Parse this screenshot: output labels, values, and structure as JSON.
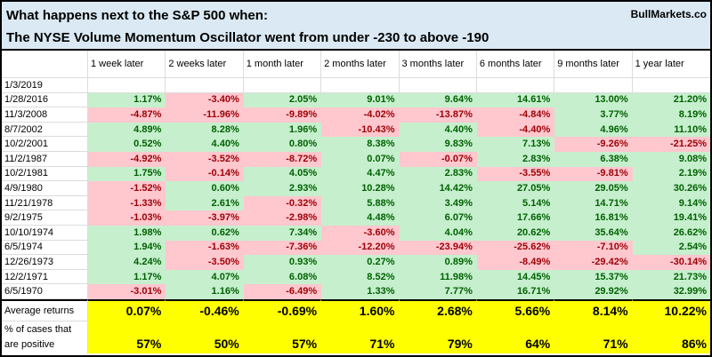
{
  "header": {
    "title_line1": "What happens next to the S&P 500 when:",
    "title_line2": "The NYSE Volume Momentum Oscillator went from under -230 to above -190",
    "brand": "BullMarkets.co"
  },
  "colors": {
    "title_bg": "#dae9f3",
    "positive_bg": "#c6efce",
    "positive_text": "#006100",
    "negative_bg": "#ffc7ce",
    "negative_text": "#9c0006",
    "summary_bg": "#ffff00"
  },
  "chart_data": {
    "type": "table",
    "title": "What happens next to the S&P 500 when: The NYSE Volume Momentum Oscillator went from under -230 to above -190",
    "columns": [
      "1 week later",
      "2 weeks later",
      "1 month later",
      "2 months later",
      "3 months later",
      "6 months later",
      "9 months later",
      "1 year later"
    ],
    "rows": [
      {
        "date": "1/3/2019",
        "values": [
          "",
          "",
          "",
          "",
          "",
          "",
          "",
          ""
        ]
      },
      {
        "date": "1/28/2016",
        "values": [
          "1.17%",
          "-3.40%",
          "2.05%",
          "9.01%",
          "9.64%",
          "14.61%",
          "13.00%",
          "21.20%"
        ]
      },
      {
        "date": "11/3/2008",
        "values": [
          "-4.87%",
          "-11.96%",
          "-9.89%",
          "-4.02%",
          "-13.87%",
          "-4.84%",
          "3.77%",
          "8.19%"
        ]
      },
      {
        "date": "8/7/2002",
        "values": [
          "4.89%",
          "8.28%",
          "1.96%",
          "-10.43%",
          "4.40%",
          "-4.40%",
          "4.96%",
          "11.10%"
        ]
      },
      {
        "date": "10/2/2001",
        "values": [
          "0.52%",
          "4.40%",
          "0.80%",
          "8.38%",
          "9.83%",
          "7.13%",
          "-9.26%",
          "-21.25%"
        ]
      },
      {
        "date": "11/2/1987",
        "values": [
          "-4.92%",
          "-3.52%",
          "-8.72%",
          "0.07%",
          "-0.07%",
          "2.83%",
          "6.38%",
          "9.08%"
        ]
      },
      {
        "date": "10/2/1981",
        "values": [
          "1.75%",
          "-0.14%",
          "4.05%",
          "4.47%",
          "2.83%",
          "-3.55%",
          "-9.81%",
          "2.19%"
        ]
      },
      {
        "date": "4/9/1980",
        "values": [
          "-1.52%",
          "0.60%",
          "2.93%",
          "10.28%",
          "14.42%",
          "27.05%",
          "29.05%",
          "30.26%"
        ]
      },
      {
        "date": "11/21/1978",
        "values": [
          "-1.33%",
          "2.61%",
          "-0.32%",
          "5.88%",
          "3.49%",
          "5.14%",
          "14.71%",
          "9.14%"
        ]
      },
      {
        "date": "9/2/1975",
        "values": [
          "-1.03%",
          "-3.97%",
          "-2.98%",
          "4.48%",
          "6.07%",
          "17.66%",
          "16.81%",
          "19.41%"
        ]
      },
      {
        "date": "10/10/1974",
        "values": [
          "1.98%",
          "0.62%",
          "7.34%",
          "-3.60%",
          "4.04%",
          "20.62%",
          "35.64%",
          "26.62%"
        ]
      },
      {
        "date": "6/5/1974",
        "values": [
          "1.94%",
          "-1.63%",
          "-7.36%",
          "-12.20%",
          "-23.94%",
          "-25.62%",
          "-7.10%",
          "2.54%"
        ]
      },
      {
        "date": "12/26/1973",
        "values": [
          "4.24%",
          "-3.50%",
          "0.93%",
          "0.27%",
          "0.89%",
          "-8.49%",
          "-29.42%",
          "-30.14%"
        ]
      },
      {
        "date": "12/2/1971",
        "values": [
          "1.17%",
          "4.07%",
          "6.08%",
          "8.52%",
          "11.98%",
          "14.45%",
          "15.37%",
          "21.73%"
        ]
      },
      {
        "date": "6/5/1970",
        "values": [
          "-3.01%",
          "1.16%",
          "-6.49%",
          "1.33%",
          "7.77%",
          "16.71%",
          "29.92%",
          "32.99%"
        ]
      }
    ],
    "average": {
      "label": "Average returns",
      "values": [
        "0.07%",
        "-0.46%",
        "-0.69%",
        "1.60%",
        "2.68%",
        "5.66%",
        "8.14%",
        "10.22%"
      ]
    },
    "percent_positive": {
      "label_line1": "% of cases that",
      "label_line2": "are positive",
      "values": [
        "57%",
        "50%",
        "57%",
        "71%",
        "79%",
        "64%",
        "71%",
        "86%"
      ]
    }
  }
}
